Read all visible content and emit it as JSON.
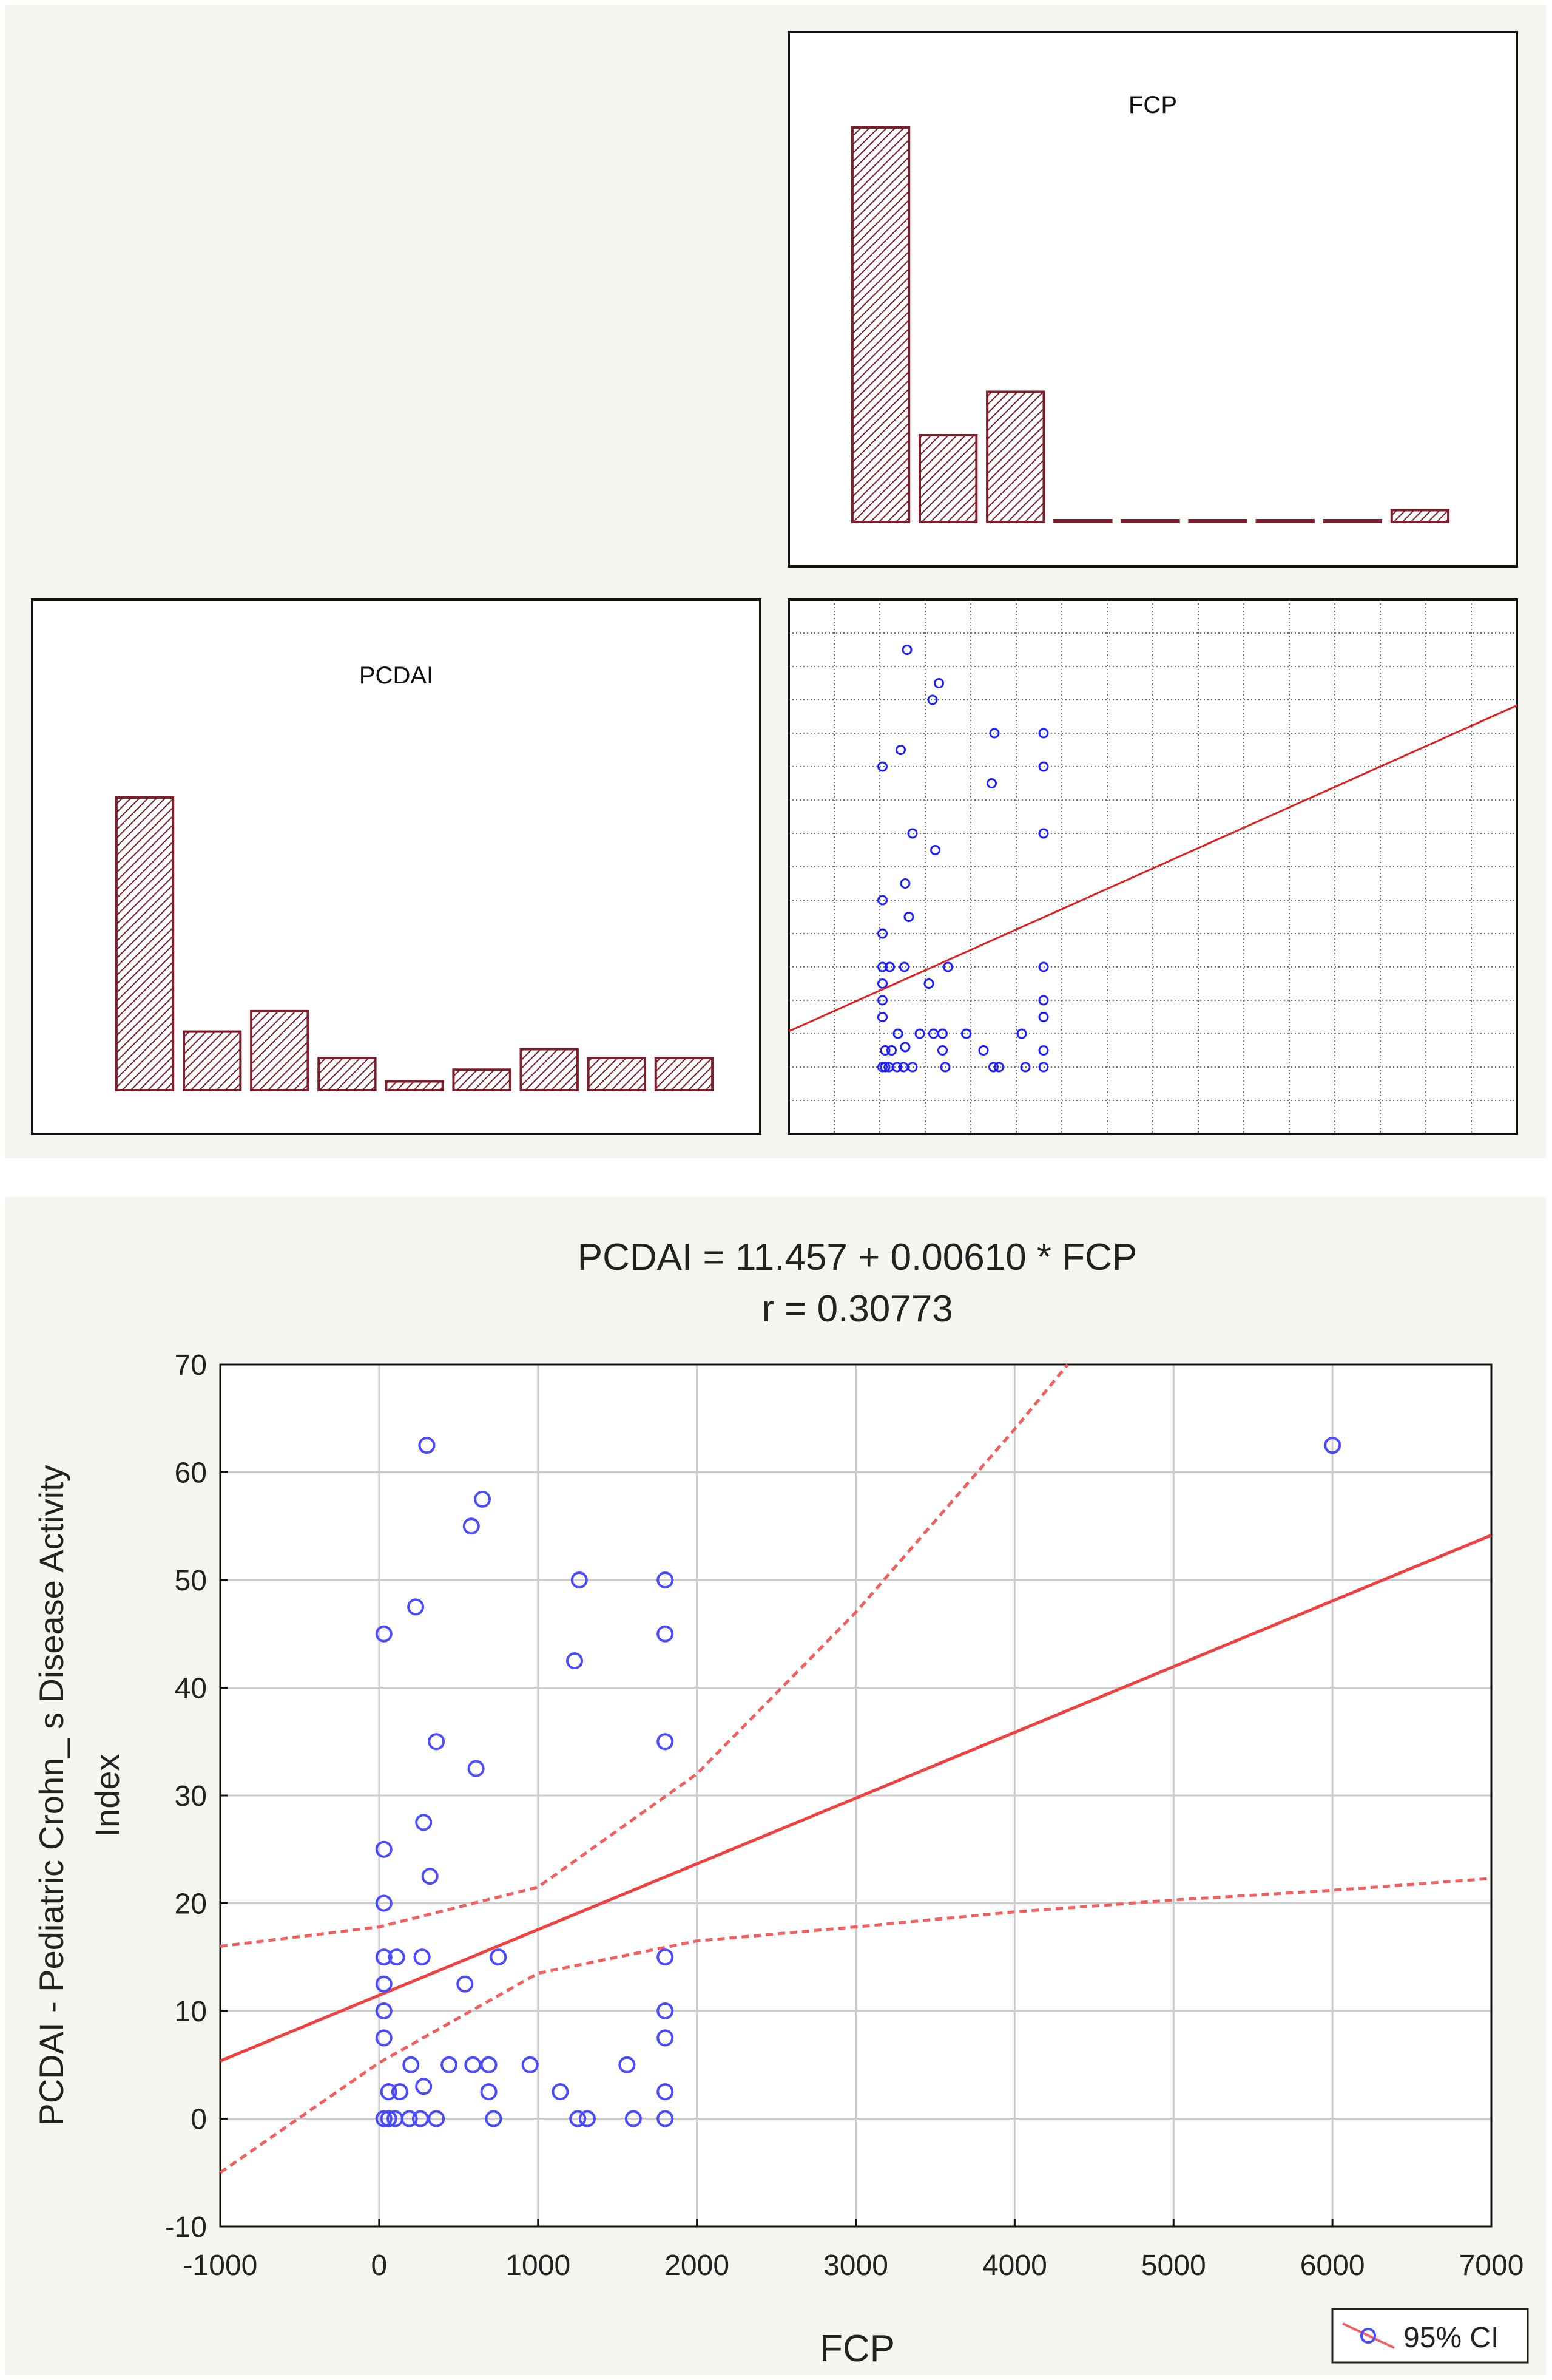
{
  "chart_data": [
    {
      "type": "bar",
      "title": "FCP",
      "values": [
        100,
        22,
        33,
        0,
        0,
        0,
        0,
        0,
        3
      ],
      "colors": {
        "bar": "#7a1f2b",
        "hatch": "#7a1f2b",
        "fill": "#ffffff"
      }
    },
    {
      "type": "bar",
      "title": "PCDAI",
      "values": [
        100,
        20,
        27,
        11,
        3,
        7,
        14,
        11,
        11
      ],
      "colors": {
        "bar": "#7a1f2b",
        "hatch": "#7a1f2b",
        "fill": "#ffffff"
      }
    },
    {
      "type": "scatter",
      "title": "",
      "xlim": [
        -1000,
        7000
      ],
      "ylim": [
        -10,
        70
      ],
      "grid": true,
      "regression": {
        "intercept": 11.457,
        "slope": 0.0061
      },
      "points": [
        [
          300,
          62.5
        ],
        [
          650,
          57.5
        ],
        [
          580,
          55
        ],
        [
          1260,
          50
        ],
        [
          1800,
          50
        ],
        [
          230,
          47.5
        ],
        [
          30,
          45
        ],
        [
          1800,
          45
        ],
        [
          1230,
          42.5
        ],
        [
          360,
          35
        ],
        [
          1800,
          35
        ],
        [
          610,
          32.5
        ],
        [
          280,
          27.5
        ],
        [
          30,
          25
        ],
        [
          320,
          22.5
        ],
        [
          30,
          20
        ],
        [
          30,
          15
        ],
        [
          110,
          15
        ],
        [
          270,
          15
        ],
        [
          750,
          15
        ],
        [
          1800,
          15
        ],
        [
          30,
          12.5
        ],
        [
          540,
          12.5
        ],
        [
          30,
          10
        ],
        [
          1800,
          10
        ],
        [
          30,
          7.5
        ],
        [
          1800,
          7.5
        ],
        [
          200,
          5
        ],
        [
          440,
          5
        ],
        [
          590,
          5
        ],
        [
          690,
          5
        ],
        [
          950,
          5
        ],
        [
          1560,
          5
        ],
        [
          60,
          2.5
        ],
        [
          130,
          2.5
        ],
        [
          280,
          3
        ],
        [
          690,
          2.5
        ],
        [
          1140,
          2.5
        ],
        [
          1800,
          2.5
        ],
        [
          30,
          0
        ],
        [
          60,
          0
        ],
        [
          100,
          0
        ],
        [
          190,
          0
        ],
        [
          260,
          0
        ],
        [
          360,
          0
        ],
        [
          720,
          0
        ],
        [
          1250,
          0
        ],
        [
          1310,
          0
        ],
        [
          1600,
          0
        ],
        [
          1800,
          0
        ]
      ],
      "colors": {
        "points": "#1f1fff",
        "line": "#ff0000"
      }
    },
    {
      "type": "scatter",
      "title": "PCDAI = 11.457 + 0.00610 * FCP",
      "subtitle": "r =  0.30773",
      "xlabel": "FCP",
      "ylabel": "PCDAI - Pediatric Crohn_ s Disease Activity Index",
      "xlim": [
        -1000,
        7000
      ],
      "ylim": [
        -10,
        70
      ],
      "xticks": [
        "-1000",
        "0",
        "1000",
        "2000",
        "3000",
        "4000",
        "5000",
        "6000",
        "7000"
      ],
      "yticks": [
        "-10",
        "0",
        "10",
        "20",
        "30",
        "40",
        "50",
        "60",
        "70"
      ],
      "grid": true,
      "legend": {
        "position": "bottom-right",
        "label": "95% CI"
      },
      "regression": {
        "intercept": 11.457,
        "slope": 0.0061
      },
      "ci_upper": [
        [
          -1000,
          16
        ],
        [
          0,
          17.8
        ],
        [
          1000,
          21.5
        ],
        [
          2000,
          32
        ],
        [
          3000,
          47
        ],
        [
          4000,
          64
        ],
        [
          4500,
          73
        ]
      ],
      "ci_lower": [
        [
          -1000,
          -5
        ],
        [
          0,
          5.2
        ],
        [
          1000,
          13.5
        ],
        [
          2000,
          16.5
        ],
        [
          3000,
          17.8
        ],
        [
          4000,
          19.2
        ],
        [
          5000,
          20.3
        ],
        [
          6000,
          21.2
        ],
        [
          7000,
          22.3
        ]
      ],
      "points": [
        [
          300,
          62.5
        ],
        [
          650,
          57.5
        ],
        [
          580,
          55
        ],
        [
          1260,
          50
        ],
        [
          1800,
          50
        ],
        [
          230,
          47.5
        ],
        [
          30,
          45
        ],
        [
          1800,
          45
        ],
        [
          1230,
          42.5
        ],
        [
          360,
          35
        ],
        [
          1800,
          35
        ],
        [
          610,
          32.5
        ],
        [
          280,
          27.5
        ],
        [
          30,
          25
        ],
        [
          320,
          22.5
        ],
        [
          30,
          20
        ],
        [
          30,
          15
        ],
        [
          110,
          15
        ],
        [
          270,
          15
        ],
        [
          750,
          15
        ],
        [
          1800,
          15
        ],
        [
          30,
          12.5
        ],
        [
          540,
          12.5
        ],
        [
          30,
          10
        ],
        [
          1800,
          10
        ],
        [
          30,
          7.5
        ],
        [
          1800,
          7.5
        ],
        [
          200,
          5
        ],
        [
          440,
          5
        ],
        [
          590,
          5
        ],
        [
          690,
          5
        ],
        [
          950,
          5
        ],
        [
          1560,
          5
        ],
        [
          60,
          2.5
        ],
        [
          130,
          2.5
        ],
        [
          280,
          3
        ],
        [
          690,
          2.5
        ],
        [
          1140,
          2.5
        ],
        [
          1800,
          2.5
        ],
        [
          30,
          0
        ],
        [
          60,
          0
        ],
        [
          100,
          0
        ],
        [
          190,
          0
        ],
        [
          260,
          0
        ],
        [
          360,
          0
        ],
        [
          720,
          0
        ],
        [
          1250,
          0
        ],
        [
          1310,
          0
        ],
        [
          1600,
          0
        ],
        [
          1800,
          0
        ],
        [
          6000,
          62.5
        ]
      ],
      "colors": {
        "points": "#4a4aff",
        "line": "#f04040",
        "ci": "#f06060"
      }
    }
  ]
}
